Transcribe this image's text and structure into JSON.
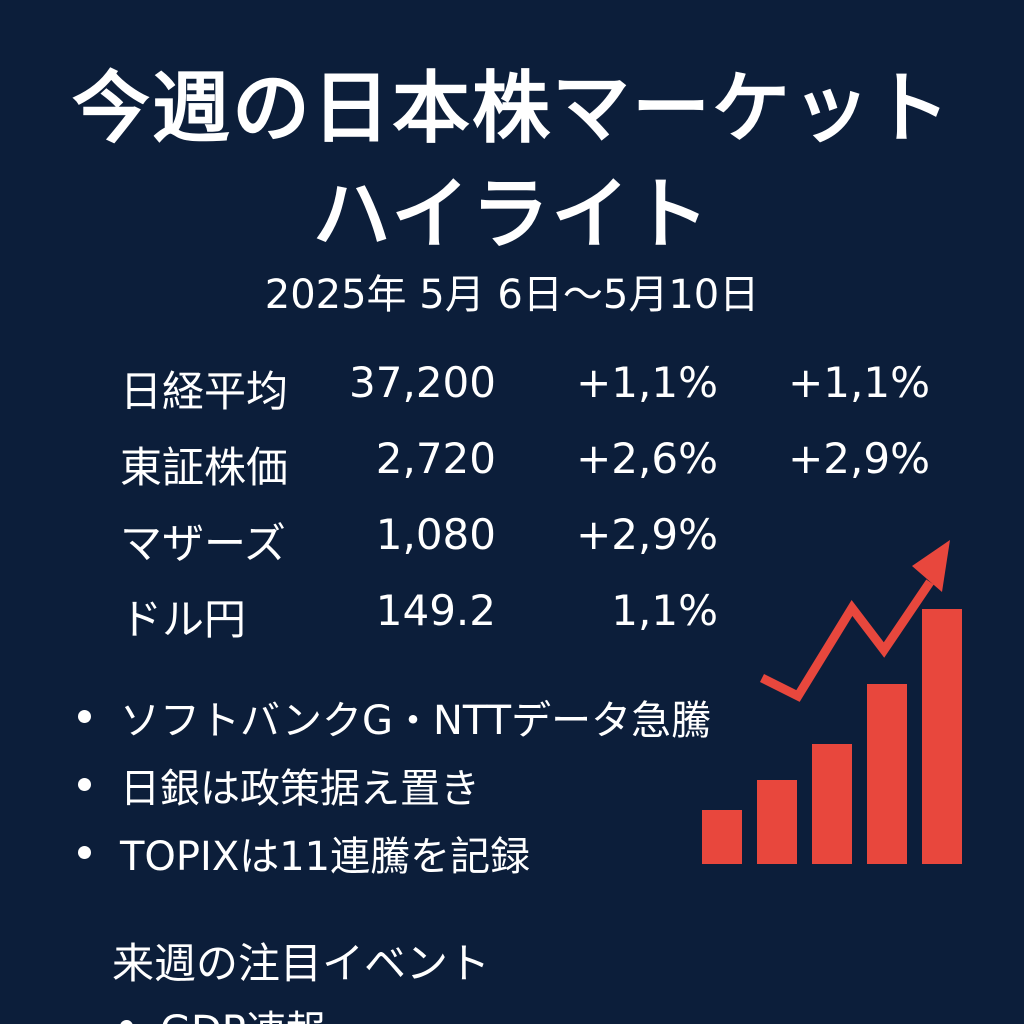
{
  "title": {
    "line1": "今週の日本株マーケット",
    "line2": "ハイライト"
  },
  "date_range": "2025年 5月 6日〜5月10日",
  "market": [
    {
      "name": "日経平均",
      "value": "37,200",
      "change": "+1,1%",
      "change2": "+1,1%"
    },
    {
      "name": "東証株価",
      "value": "2,720",
      "change": "+2,6%",
      "change2": "+2,9%"
    },
    {
      "name": "マザーズ",
      "value": "1,080",
      "change": "+2,9%",
      "change2": ""
    },
    {
      "name": "ドル円",
      "value": "149.2",
      "change": "1,1%",
      "change2": ""
    }
  ],
  "highlights": [
    "ソフトバンクG・NTTデータ急騰",
    "日銀は政策据え置き",
    "TOPIXは11連騰を記録"
  ],
  "next_week": {
    "title": "来週の注目イベント",
    "items": [
      "GDP速報"
    ]
  },
  "graphic": {
    "bar_levels": [
      0.18,
      0.28,
      0.4,
      0.6,
      0.85
    ],
    "bar_color": "#e8473d",
    "arrow_color": "#e8473d",
    "icon": "rising-arrow-bar-icon"
  },
  "colors": {
    "background": "#0c1e3a",
    "text": "#ffffff"
  }
}
